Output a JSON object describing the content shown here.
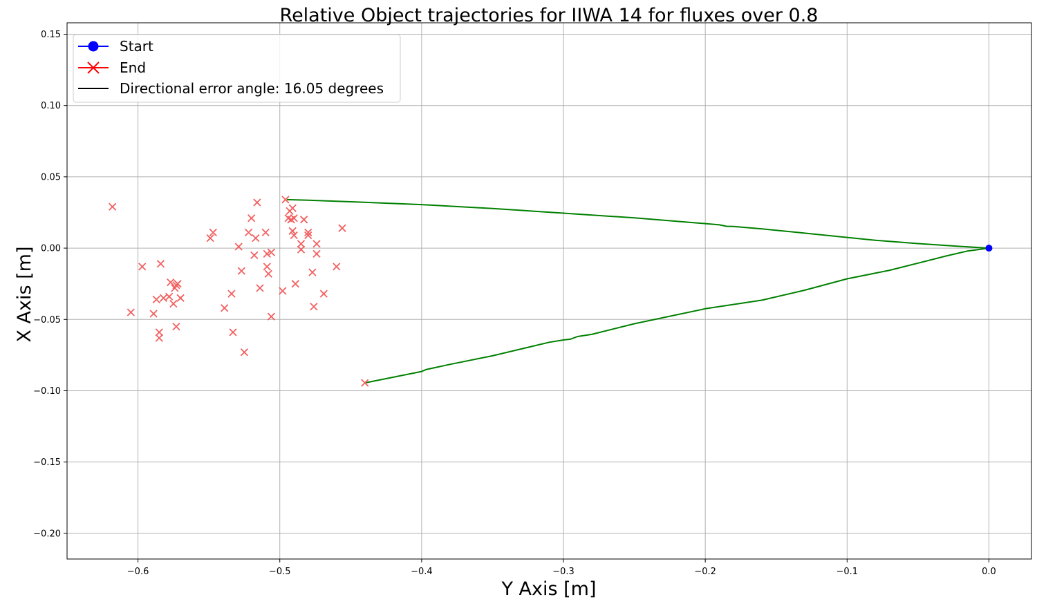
{
  "chart_data": {
    "type": "line",
    "title": "Relative Object trajectories for IIWA 14 for fluxes over 0.8",
    "xlabel": "Y Axis [m]",
    "ylabel": "X Axis [m]",
    "xlim": [
      -0.65,
      0.03
    ],
    "ylim": [
      -0.218,
      0.158
    ],
    "grid": true,
    "legend_position": "top-left",
    "x_ticks": [
      -0.6,
      -0.5,
      -0.4,
      -0.3,
      -0.2,
      -0.1,
      0.0
    ],
    "x_tick_labels": [
      "−0.6",
      "−0.5",
      "−0.4",
      "−0.3",
      "−0.2",
      "−0.1",
      "0.0"
    ],
    "y_ticks": [
      0.15,
      0.1,
      0.05,
      0.0,
      -0.05,
      -0.1,
      -0.15,
      -0.2
    ],
    "y_tick_labels": [
      "0.15",
      "0.10",
      "0.05",
      "0.00",
      "−0.05",
      "−0.10",
      "−0.15",
      "−0.20"
    ],
    "legend": [
      {
        "label": "Start",
        "marker": "circle",
        "color": "#0000ff"
      },
      {
        "label": "End",
        "marker": "x",
        "color": "#ff0000"
      },
      {
        "label": "Directional error angle: 16.05 degrees",
        "marker": "line",
        "color": "#000000"
      }
    ],
    "start": {
      "x": 0.0,
      "y": 0.0,
      "color": "#0000ff"
    },
    "trajectories": [
      {
        "color": "#008000",
        "points": [
          [
            0.0,
            0.0
          ],
          [
            -0.02,
            0.0012
          ],
          [
            -0.05,
            0.0032
          ],
          [
            -0.08,
            0.0055
          ],
          [
            -0.1,
            0.0075
          ],
          [
            -0.13,
            0.0105
          ],
          [
            -0.16,
            0.0135
          ],
          [
            -0.18,
            0.0152
          ],
          [
            -0.185,
            0.0153
          ],
          [
            -0.19,
            0.0163
          ],
          [
            -0.2,
            0.0172
          ],
          [
            -0.25,
            0.0212
          ],
          [
            -0.3,
            0.0245
          ],
          [
            -0.35,
            0.0278
          ],
          [
            -0.4,
            0.0305
          ],
          [
            -0.45,
            0.0325
          ],
          [
            -0.48,
            0.0336
          ],
          [
            -0.495,
            0.034
          ]
        ]
      },
      {
        "color": "#008000",
        "points": [
          [
            0.0,
            0.0
          ],
          [
            -0.015,
            -0.002
          ],
          [
            -0.03,
            -0.0055
          ],
          [
            -0.05,
            -0.0105
          ],
          [
            -0.07,
            -0.0155
          ],
          [
            -0.1,
            -0.0215
          ],
          [
            -0.13,
            -0.0295
          ],
          [
            -0.16,
            -0.0365
          ],
          [
            -0.2,
            -0.0425
          ],
          [
            -0.25,
            -0.053
          ],
          [
            -0.28,
            -0.0605
          ],
          [
            -0.29,
            -0.062
          ],
          [
            -0.295,
            -0.0638
          ],
          [
            -0.3,
            -0.0644
          ],
          [
            -0.31,
            -0.066
          ],
          [
            -0.35,
            -0.0755
          ],
          [
            -0.38,
            -0.0815
          ],
          [
            -0.397,
            -0.0852
          ],
          [
            -0.4,
            -0.0865
          ],
          [
            -0.42,
            -0.0905
          ],
          [
            -0.44,
            -0.0945
          ]
        ]
      }
    ],
    "end_marker_color": "#f26060",
    "end_points": [
      [
        -0.618,
        0.029
      ],
      [
        -0.605,
        -0.045
      ],
      [
        -0.597,
        -0.013
      ],
      [
        -0.589,
        -0.046
      ],
      [
        -0.587,
        -0.036
      ],
      [
        -0.585,
        -0.059
      ],
      [
        -0.585,
        -0.063
      ],
      [
        -0.584,
        -0.011
      ],
      [
        -0.582,
        -0.035
      ],
      [
        -0.578,
        -0.034
      ],
      [
        -0.577,
        -0.024
      ],
      [
        -0.575,
        -0.039
      ],
      [
        -0.574,
        -0.028
      ],
      [
        -0.573,
        -0.026
      ],
      [
        -0.572,
        -0.025
      ],
      [
        -0.573,
        -0.055
      ],
      [
        -0.57,
        -0.035
      ],
      [
        -0.549,
        0.007
      ],
      [
        -0.547,
        0.011
      ],
      [
        -0.539,
        -0.042
      ],
      [
        -0.534,
        -0.032
      ],
      [
        -0.533,
        -0.059
      ],
      [
        -0.529,
        0.001
      ],
      [
        -0.527,
        -0.016
      ],
      [
        -0.525,
        -0.073
      ],
      [
        -0.522,
        0.011
      ],
      [
        -0.52,
        0.021
      ],
      [
        -0.518,
        -0.005
      ],
      [
        -0.517,
        0.007
      ],
      [
        -0.516,
        0.032
      ],
      [
        -0.514,
        -0.028
      ],
      [
        -0.51,
        0.011
      ],
      [
        -0.509,
        -0.004
      ],
      [
        -0.509,
        -0.013
      ],
      [
        -0.508,
        -0.018
      ],
      [
        -0.506,
        -0.003
      ],
      [
        -0.506,
        -0.048
      ],
      [
        -0.498,
        -0.03
      ],
      [
        -0.496,
        0.034
      ],
      [
        -0.494,
        0.021
      ],
      [
        -0.493,
        0.026
      ],
      [
        -0.492,
        0.02
      ],
      [
        -0.49,
        0.021
      ],
      [
        -0.491,
        0.028
      ],
      [
        -0.491,
        0.012
      ],
      [
        -0.49,
        0.009
      ],
      [
        -0.489,
        -0.025
      ],
      [
        -0.485,
        -0.001
      ],
      [
        -0.485,
        0.003
      ],
      [
        -0.483,
        0.02
      ],
      [
        -0.48,
        0.011
      ],
      [
        -0.48,
        0.009
      ],
      [
        -0.477,
        -0.017
      ],
      [
        -0.476,
        -0.041
      ],
      [
        -0.474,
        0.003
      ],
      [
        -0.474,
        -0.004
      ],
      [
        -0.469,
        -0.032
      ],
      [
        -0.46,
        -0.013
      ],
      [
        -0.456,
        0.014
      ],
      [
        -0.44,
        -0.0945
      ]
    ]
  }
}
